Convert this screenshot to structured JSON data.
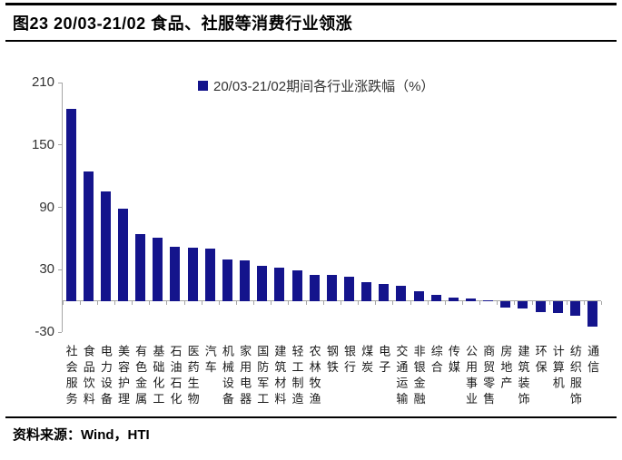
{
  "header": {
    "title": "图23 20/03-21/02 食品、社服等消费行业领涨"
  },
  "footer": {
    "source_label": "资料来源：Wind，HTI"
  },
  "chart_data": {
    "type": "bar",
    "title": "图23 20/03-21/02 食品、社服等消费行业领涨",
    "legend": "20/03-21/02期间各行业涨跌幅（%）",
    "legend_position": "top-center",
    "grid": false,
    "ylim": [
      -30,
      210
    ],
    "yticks": [
      210,
      150,
      90,
      30,
      -30
    ],
    "xlabel": "",
    "ylabel": "",
    "bar_color": "#14148C",
    "axis_color": "#A6A6A6",
    "categories": [
      "社会服务",
      "食品饮料",
      "电力设备",
      "美容护理",
      "有色金属",
      "基础化工",
      "石油石化",
      "医药生物",
      "汽车",
      "机械设备",
      "家用电器",
      "国防军工",
      "建筑材料",
      "轻工制造",
      "农林牧渔",
      "钢铁",
      "银行",
      "煤炭",
      "电子",
      "交通运输",
      "非银金融",
      "综合",
      "传媒",
      "公用事业",
      "商贸零售",
      "房地产",
      "建筑装饰",
      "环保",
      "计算机",
      "纺织服饰",
      "通信"
    ],
    "values": [
      185,
      125,
      105,
      89,
      64,
      61,
      52,
      51,
      50,
      40,
      39,
      34,
      32,
      29,
      25.5,
      25,
      23,
      18,
      16,
      15,
      9,
      5.5,
      3,
      2,
      0.3,
      -6,
      -6.5,
      -10,
      -11,
      -14,
      -24
    ]
  }
}
